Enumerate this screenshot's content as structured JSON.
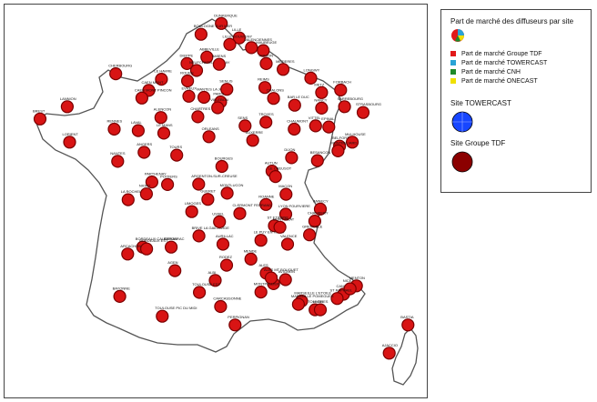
{
  "legend": {
    "title": "Part de marché des diffuseurs par site",
    "items": [
      {
        "label": "Part de marché Groupe TDF",
        "color": "#e11919"
      },
      {
        "label": "Part de marché TOWERCAST",
        "color": "#29a3d6"
      },
      {
        "label": "Part de marché CNH",
        "color": "#1f8a2a"
      },
      {
        "label": "Part de marché ONECAST",
        "color": "#f0e000"
      }
    ],
    "site_towercast": "Site TOWERCAST",
    "site_tdf": "Site Groupe TDF",
    "site_towercast_color": "#1746ff",
    "site_tdf_color": "#8b0000"
  },
  "cities": [
    {
      "name": "DUNKERQUE",
      "lon": 2.38,
      "lat": 51.03
    },
    {
      "name": "BOULOGNE SUR MER",
      "lon": 1.61,
      "lat": 50.73
    },
    {
      "name": "LILLE",
      "lon": 3.06,
      "lat": 50.63
    },
    {
      "name": "VALENCIENNES",
      "lon": 3.52,
      "lat": 50.36
    },
    {
      "name": "LILLE BOUVIGNY",
      "lon": 2.7,
      "lat": 50.45
    },
    {
      "name": "ABBEVILLE",
      "lon": 1.83,
      "lat": 50.1
    },
    {
      "name": "MAUBEUGE",
      "lon": 3.97,
      "lat": 50.28
    },
    {
      "name": "CHERBOURG",
      "lon": -1.62,
      "lat": 49.64
    },
    {
      "name": "DIEPPE",
      "lon": 1.08,
      "lat": 49.92
    },
    {
      "name": "NEUFCHATEL EN BRAY",
      "lon": 1.44,
      "lat": 49.73
    },
    {
      "name": "LE HAVRE",
      "lon": 0.11,
      "lat": 49.49
    },
    {
      "name": "AMIENS",
      "lon": 2.3,
      "lat": 49.9
    },
    {
      "name": "HIRSON",
      "lon": 4.08,
      "lat": 49.92
    },
    {
      "name": "LONGWY",
      "lon": 5.77,
      "lat": 49.52
    },
    {
      "name": "REIMS",
      "lon": 4.03,
      "lat": 49.26
    },
    {
      "name": "MEZIERES",
      "lon": 4.72,
      "lat": 49.76
    },
    {
      "name": "METZ",
      "lon": 6.18,
      "lat": 49.12
    },
    {
      "name": "FORBACH",
      "lon": 6.9,
      "lat": 49.19
    },
    {
      "name": "CAEN MONT",
      "lon": -0.37,
      "lat": 49.18
    },
    {
      "name": "ROUEN",
      "lon": 1.1,
      "lat": 49.44
    },
    {
      "name": "EVREUX",
      "lon": 1.15,
      "lat": 49.02
    },
    {
      "name": "MANTES LA JOLIE",
      "lon": 1.72,
      "lat": 48.99
    },
    {
      "name": "SENLIS",
      "lon": 2.59,
      "lat": 49.21
    },
    {
      "name": "CAEN MONT PINCON",
      "lon": -0.63,
      "lat": 48.97
    },
    {
      "name": "PARIS",
      "lon": 2.35,
      "lat": 48.86
    },
    {
      "name": "CHALONS",
      "lon": 4.36,
      "lat": 48.96
    },
    {
      "name": "BAR LE DUC",
      "lon": 5.16,
      "lat": 48.77
    },
    {
      "name": "NANCY",
      "lon": 6.18,
      "lat": 48.69
    },
    {
      "name": "STRASBOURG",
      "lon": 7.75,
      "lat": 48.57
    },
    {
      "name": "BREST",
      "lon": -4.49,
      "lat": 48.39
    },
    {
      "name": "ALENCON",
      "lon": 0.09,
      "lat": 48.43
    },
    {
      "name": "CHARTRES",
      "lon": 1.49,
      "lat": 48.45
    },
    {
      "name": "VILLEBON",
      "lon": 2.24,
      "lat": 48.7
    },
    {
      "name": "TROYES",
      "lon": 4.07,
      "lat": 48.3
    },
    {
      "name": "CHAUMONT",
      "lon": 5.14,
      "lat": 48.11
    },
    {
      "name": "VITTEL",
      "lon": 5.95,
      "lat": 48.2
    },
    {
      "name": "EPINAL",
      "lon": 6.45,
      "lat": 48.17
    },
    {
      "name": "SARREBOURG",
      "lon": 7.05,
      "lat": 48.73
    },
    {
      "name": "RENNES",
      "lon": -1.68,
      "lat": 48.11
    },
    {
      "name": "LANNION",
      "lon": -3.46,
      "lat": 48.73
    },
    {
      "name": "LAVAL",
      "lon": -0.77,
      "lat": 48.07
    },
    {
      "name": "SENS",
      "lon": 3.28,
      "lat": 48.2
    },
    {
      "name": "ORLEANS",
      "lon": 1.91,
      "lat": 47.9
    },
    {
      "name": "AUXERRE",
      "lon": 3.57,
      "lat": 47.8
    },
    {
      "name": "MULHOUSE",
      "lon": 7.34,
      "lat": 47.75
    },
    {
      "name": "LORIENT",
      "lon": -3.37,
      "lat": 47.75
    },
    {
      "name": "LE MANS",
      "lon": 0.2,
      "lat": 48.0
    },
    {
      "name": "BELFORT",
      "lon": 6.86,
      "lat": 47.64
    },
    {
      "name": "MONTBELIARD",
      "lon": 6.8,
      "lat": 47.51
    },
    {
      "name": "DIJON",
      "lon": 5.04,
      "lat": 47.32
    },
    {
      "name": "BESANCON",
      "lon": 6.02,
      "lat": 47.24
    },
    {
      "name": "ANGERS",
      "lon": -0.55,
      "lat": 47.47
    },
    {
      "name": "TOURS",
      "lon": 0.69,
      "lat": 47.39
    },
    {
      "name": "BOURGES",
      "lon": 2.4,
      "lat": 47.08
    },
    {
      "name": "NANTES",
      "lon": -1.55,
      "lat": 47.22
    },
    {
      "name": "AUTUN",
      "lon": 4.3,
      "lat": 46.95
    },
    {
      "name": "PARTHENAY",
      "lon": -0.25,
      "lat": 46.65
    },
    {
      "name": "POITIERS",
      "lon": 0.34,
      "lat": 46.58
    },
    {
      "name": "ARGENTON-SUR-CREUSE",
      "lon": 1.52,
      "lat": 46.59
    },
    {
      "name": "LE CREUSOT",
      "lon": 4.43,
      "lat": 46.8
    },
    {
      "name": "MACON",
      "lon": 4.83,
      "lat": 46.31
    },
    {
      "name": "LA ROCHELLE",
      "lon": -1.15,
      "lat": 46.16
    },
    {
      "name": "NIORT",
      "lon": -0.46,
      "lat": 46.32
    },
    {
      "name": "MONTLUCON",
      "lon": 2.6,
      "lat": 46.34
    },
    {
      "name": "ROANNE",
      "lon": 4.07,
      "lat": 46.03
    },
    {
      "name": "LYON FOURVIERE",
      "lon": 4.82,
      "lat": 45.76
    },
    {
      "name": "ANNECY",
      "lon": 6.13,
      "lat": 45.9
    },
    {
      "name": "LIMOGES",
      "lon": 1.26,
      "lat": 45.83
    },
    {
      "name": "GUERET",
      "lon": 1.87,
      "lat": 46.17
    },
    {
      "name": "CLERMONT FERRAND",
      "lon": 3.08,
      "lat": 45.78
    },
    {
      "name": "ST ETIENNE",
      "lon": 4.39,
      "lat": 45.44
    },
    {
      "name": "CHAMBERY",
      "lon": 5.92,
      "lat": 45.57
    },
    {
      "name": "BRIVE LA GAILLARDE",
      "lon": 1.53,
      "lat": 45.16
    },
    {
      "name": "USSEL",
      "lon": 2.31,
      "lat": 45.55
    },
    {
      "name": "LE PUY EN VELAY",
      "lon": 3.88,
      "lat": 45.04
    },
    {
      "name": "GRENOBLE",
      "lon": 5.72,
      "lat": 45.19
    },
    {
      "name": "BORDEAUX CAUDERAN",
      "lon": -0.6,
      "lat": 44.85
    },
    {
      "name": "BERGERAC",
      "lon": 0.48,
      "lat": 44.85
    },
    {
      "name": "BORDEAUX EST",
      "lon": -0.45,
      "lat": 44.8
    },
    {
      "name": "AURILLAC",
      "lon": 2.44,
      "lat": 44.93
    },
    {
      "name": "MONT PILAT",
      "lon": 4.6,
      "lat": 45.4
    },
    {
      "name": "VALENCE",
      "lon": 4.89,
      "lat": 44.93
    },
    {
      "name": "ARCACHON",
      "lon": -1.17,
      "lat": 44.66
    },
    {
      "name": "AGEN",
      "lon": 0.62,
      "lat": 44.2
    },
    {
      "name": "MENDE",
      "lon": 3.5,
      "lat": 44.52
    },
    {
      "name": "RODEZ",
      "lon": 2.58,
      "lat": 44.35
    },
    {
      "name": "ALBI",
      "lon": 2.15,
      "lat": 43.93
    },
    {
      "name": "ALES",
      "lon": 4.08,
      "lat": 44.13
    },
    {
      "name": "NIMES",
      "lon": 4.36,
      "lat": 43.84
    },
    {
      "name": "AVIGNON",
      "lon": 4.81,
      "lat": 43.95
    },
    {
      "name": "ALES MT BOUQUET",
      "lon": 4.27,
      "lat": 44.0
    },
    {
      "name": "TOULOUSE EST",
      "lon": 1.55,
      "lat": 43.6
    },
    {
      "name": "MONTPELLIER",
      "lon": 3.88,
      "lat": 43.61
    },
    {
      "name": "CARCASSONNE",
      "lon": 2.35,
      "lat": 43.21
    },
    {
      "name": "BAYONNE",
      "lon": -1.47,
      "lat": 43.49
    },
    {
      "name": "MARSEILLE L'ETOILE",
      "lon": 5.42,
      "lat": 43.36
    },
    {
      "name": "CANNES",
      "lon": 7.01,
      "lat": 43.55
    },
    {
      "name": "MENTON",
      "lon": 7.5,
      "lat": 43.78
    },
    {
      "name": "NICE",
      "lon": 7.26,
      "lat": 43.7
    },
    {
      "name": "ST RAPHAEL",
      "lon": 6.77,
      "lat": 43.43
    },
    {
      "name": "MARSEILLE POMEGUES",
      "lon": 5.3,
      "lat": 43.27
    },
    {
      "name": "TOULON",
      "lon": 5.93,
      "lat": 43.12
    },
    {
      "name": "HYERES",
      "lon": 6.13,
      "lat": 43.12
    },
    {
      "name": "TOULOUSE PIC DU MIDI",
      "lon": 0.14,
      "lat": 42.94
    },
    {
      "name": "PERPIGNAN",
      "lon": 2.9,
      "lat": 42.7
    },
    {
      "name": "BASTIA",
      "lon": 9.45,
      "lat": 42.7
    },
    {
      "name": "AJACCIO",
      "lon": 8.74,
      "lat": 41.92
    }
  ]
}
